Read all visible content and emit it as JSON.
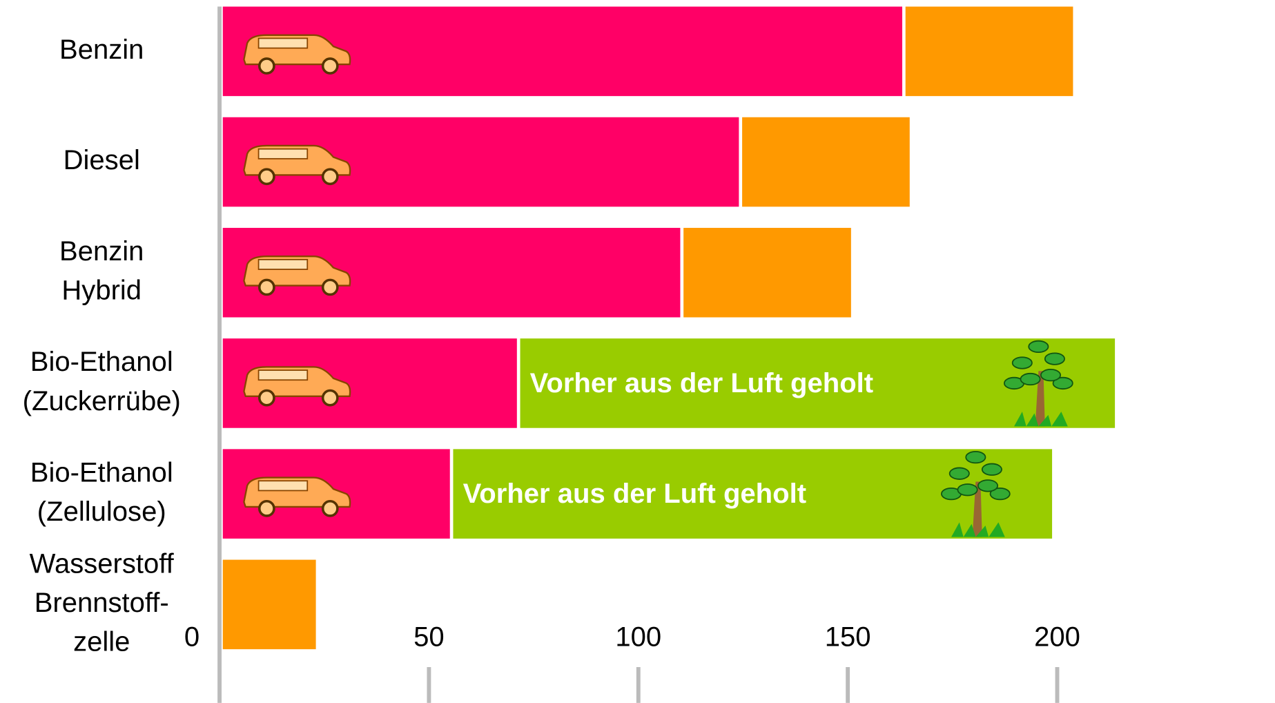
{
  "chart_data": {
    "type": "stacked-barh",
    "categories": [
      [
        "Benzin"
      ],
      [
        "Diesel"
      ],
      [
        "Benzin",
        "Hybrid"
      ],
      [
        "Bio-Ethanol",
        "(Zuckerrübe)"
      ],
      [
        "Bio-Ethanol",
        "(Zellulose)"
      ],
      [
        "Wasserstoff",
        "Brennstoff-",
        "zelle"
      ]
    ],
    "series": [
      {
        "color": "#ff0066",
        "values": [
          163,
          124,
          110,
          71,
          55,
          null
        ]
      },
      {
        "color": "#ff9900",
        "values": [
          40,
          40,
          40,
          null,
          null,
          23
        ]
      },
      {
        "color": "#99cc00",
        "values": [
          null,
          null,
          null,
          142,
          143,
          null
        ],
        "value_labels": [
          null,
          null,
          null,
          "Vorher aus der Luft geholt",
          "Vorher aus der Luft geholt",
          null
        ]
      }
    ],
    "xlim": [
      0,
      252
    ],
    "xticks": [
      0,
      50,
      100,
      150,
      200
    ]
  }
}
